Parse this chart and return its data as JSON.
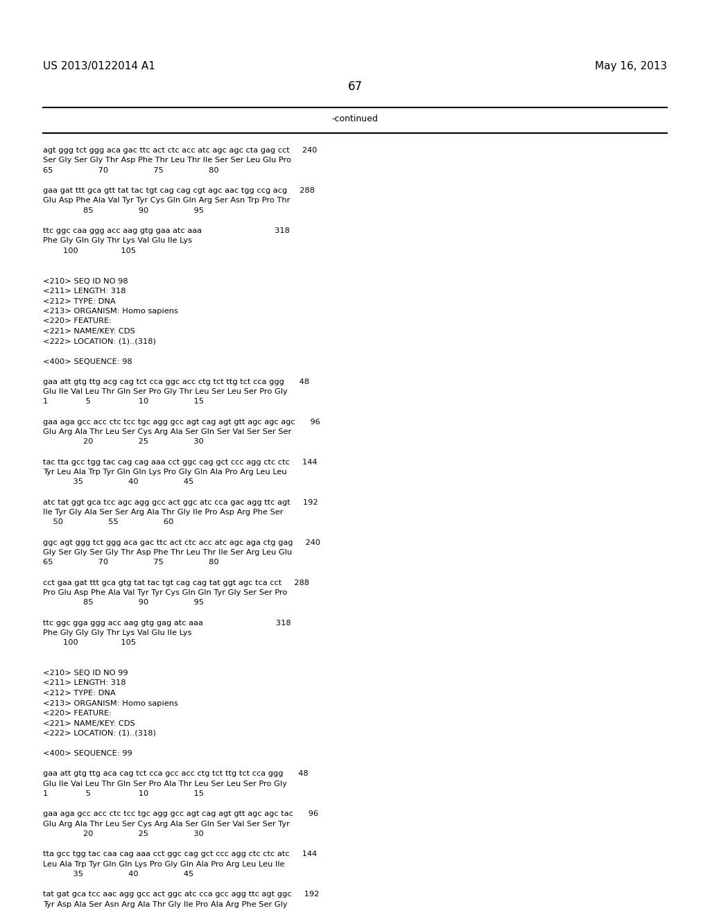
{
  "header_left": "US 2013/0122014 A1",
  "header_right": "May 16, 2013",
  "page_number": "67",
  "continued_label": "-continued",
  "background_color": "#ffffff",
  "text_color": "#000000",
  "lines": [
    "agt ggg tct ggg aca gac ttc act ctc acc atc agc agc cta gag cct     240",
    "Ser Gly Ser Gly Thr Asp Phe Thr Leu Thr Ile Ser Ser Leu Glu Pro",
    "65                  70                  75                  80",
    "",
    "gaa gat ttt gca gtt tat tac tgt cag cag cgt agc aac tgg ccg acg     288",
    "Glu Asp Phe Ala Val Tyr Tyr Cys Gln Gln Arg Ser Asn Trp Pro Thr",
    "                85                  90                  95",
    "",
    "ttc ggc caa ggg acc aag gtg gaa atc aaa                             318",
    "Phe Gly Gln Gly Thr Lys Val Glu Ile Lys",
    "        100                 105",
    "",
    "",
    "<210> SEQ ID NO 98",
    "<211> LENGTH: 318",
    "<212> TYPE: DNA",
    "<213> ORGANISM: Homo sapiens",
    "<220> FEATURE:",
    "<221> NAME/KEY: CDS",
    "<222> LOCATION: (1)..(318)",
    "",
    "<400> SEQUENCE: 98",
    "",
    "gaa att gtg ttg acg cag tct cca ggc acc ctg tct ttg tct cca ggg      48",
    "Glu Ile Val Leu Thr Gln Ser Pro Gly Thr Leu Ser Leu Ser Pro Gly",
    "1               5                   10                  15",
    "",
    "gaa aga gcc acc ctc tcc tgc agg gcc agt cag agt gtt agc agc agc      96",
    "Glu Arg Ala Thr Leu Ser Cys Arg Ala Ser Gln Ser Val Ser Ser Ser",
    "                20                  25                  30",
    "",
    "tac tta gcc tgg tac cag cag aaa cct ggc cag gct ccc agg ctc ctc     144",
    "Tyr Leu Ala Trp Tyr Gln Gln Lys Pro Gly Gln Ala Pro Arg Leu Leu",
    "            35                  40                  45",
    "",
    "atc tat ggt gca tcc agc agg gcc act ggc atc cca gac agg ttc agt     192",
    "Ile Tyr Gly Ala Ser Ser Arg Ala Thr Gly Ile Pro Asp Arg Phe Ser",
    "    50                  55                  60",
    "",
    "ggc agt ggg tct ggg aca gac ttc act ctc acc atc agc aga ctg gag     240",
    "Gly Ser Gly Ser Gly Thr Asp Phe Thr Leu Thr Ile Ser Arg Leu Glu",
    "65                  70                  75                  80",
    "",
    "cct gaa gat ttt gca gtg tat tac tgt cag cag tat ggt agc tca cct     288",
    "Pro Glu Asp Phe Ala Val Tyr Tyr Cys Gln Gln Tyr Gly Ser Ser Pro",
    "                85                  90                  95",
    "",
    "ttc ggc gga ggg acc aag gtg gag atc aaa                             318",
    "Phe Gly Gly Gly Thr Lys Val Glu Ile Lys",
    "        100                 105",
    "",
    "",
    "<210> SEQ ID NO 99",
    "<211> LENGTH: 318",
    "<212> TYPE: DNA",
    "<213> ORGANISM: Homo sapiens",
    "<220> FEATURE:",
    "<221> NAME/KEY: CDS",
    "<222> LOCATION: (1)..(318)",
    "",
    "<400> SEQUENCE: 99",
    "",
    "gaa att gtg ttg aca cag tct cca gcc acc ctg tct ttg tct cca ggg      48",
    "Glu Ile Val Leu Thr Gln Ser Pro Ala Thr Leu Ser Leu Ser Pro Gly",
    "1               5                   10                  15",
    "",
    "gaa aga gcc acc ctc tcc tgc agg gcc agt cag agt gtt agc agc tac      96",
    "Glu Arg Ala Thr Leu Ser Cys Arg Ala Ser Gln Ser Val Ser Ser Tyr",
    "                20                  25                  30",
    "",
    "tta gcc tgg tac caa cag aaa cct ggc cag gct ccc agg ctc ctc atc     144",
    "Leu Ala Trp Tyr Gln Gln Lys Pro Gly Gln Ala Pro Arg Leu Leu Ile",
    "            35                  40                  45",
    "",
    "tat gat gca tcc aac agg gcc act ggc atc cca gcc agg ttc agt ggc     192",
    "Tyr Asp Ala Ser Asn Arg Ala Thr Gly Ile Pro Ala Arg Phe Ser Gly"
  ]
}
